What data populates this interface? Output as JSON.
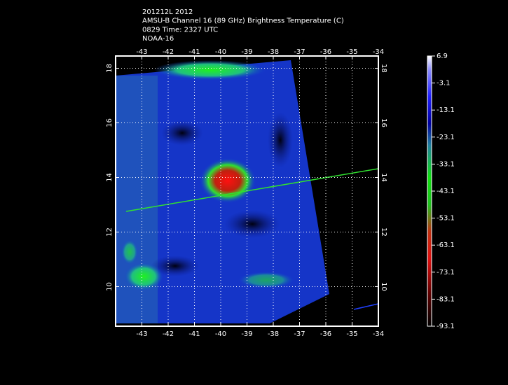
{
  "header": {
    "lines": [
      "201212L 2012",
      "AMSU-B Channel 16 (89 GHz) Brightness Temperature (C)",
      "0829 Time: 2327 UTC",
      "NOAA-16"
    ]
  },
  "map": {
    "xlim": [
      -44,
      -34
    ],
    "ylim": [
      8.55,
      18.45
    ],
    "xticks": [
      -43,
      -42,
      -41,
      -40,
      -39,
      -38,
      -37,
      -36,
      -35,
      -34
    ],
    "yticks": [
      10,
      12,
      14,
      16,
      18
    ],
    "grid": true
  },
  "colorbar": {
    "range": [
      -93.1,
      6.9
    ],
    "ticks": [
      6.9,
      -3.1,
      -13.1,
      -23.1,
      -33.1,
      -43.1,
      -53.1,
      -63.1,
      -73.1,
      -83.1,
      -93.1
    ]
  }
}
